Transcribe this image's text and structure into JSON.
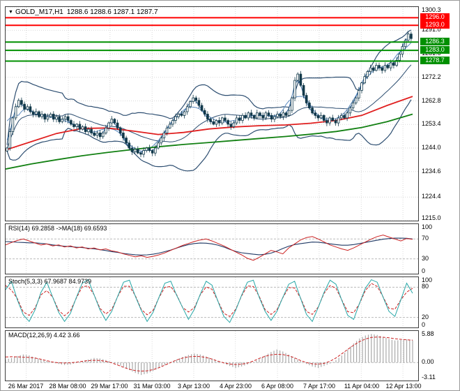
{
  "icons": {
    "symbol_dropdown": "▼"
  },
  "colors": {
    "background": "#ffffff",
    "grid": "#d9d9d9",
    "panel_border": "#3c3c3c",
    "candle": "#12394a",
    "candle_bull_fill": "#ffffff",
    "bollinger": "#2c4d70",
    "ma_fast_blue": "#3a6ea8",
    "ma_mid_blue": "#5b8ac0",
    "ma_red": "#e01f1f",
    "ma_green": "#128012",
    "level_red": "#ff0000",
    "level_green": "#009000",
    "rsi_line": "#cc2222",
    "rsi_ma": "#1f3864",
    "stoch_k": "#27a7a7",
    "stoch_d": "#cc2222",
    "macd_hist": "#a9a9a9",
    "macd_signal": "#cc2222",
    "badge_text": "#ffffff",
    "sublevel_dash": "#b9b9b9"
  },
  "time_axis": {
    "labels": [
      "26 Mar 2017",
      "28 Mar 08:00",
      "29 Mar 17:00",
      "31 Mar 03:00",
      "3 Apr 13:00",
      "4 Apr 23:00",
      "6 Apr 08:00",
      "7 Apr 17:00",
      "11 Apr 04:00",
      "12 Apr 13:00"
    ],
    "fractions": [
      0.05,
      0.152,
      0.253,
      0.355,
      0.456,
      0.557,
      0.659,
      0.76,
      0.862,
      0.963
    ]
  },
  "chart_data": [
    {
      "type": "candlestick",
      "symbol": "GOLD_M17,H1",
      "ohlc_text": "1288.6 1288.6 1287.1 1287.7",
      "ylim": [
        1215.0,
        1300.3
      ],
      "y_ticks": [
        "1300.3",
        "1291.0",
        "1281.6",
        "1272.2",
        "1262.8",
        "1253.4",
        "1244.0",
        "1234.6",
        "1224.4",
        "1215.0"
      ],
      "closes": [
        1244,
        1250.5,
        1256,
        1260.5,
        1263,
        1261.5,
        1259.5,
        1260.5,
        1258.5,
        1257.5,
        1258.5,
        1256.5,
        1257.5,
        1255.5,
        1256.5,
        1257.5,
        1255.5,
        1256.5,
        1254.5,
        1255.5,
        1256.5,
        1255,
        1253.5,
        1252.5,
        1253.5,
        1251.5,
        1252.5,
        1250.5,
        1251.5,
        1250,
        1249,
        1250,
        1248.5,
        1250,
        1252,
        1254,
        1255.5,
        1254,
        1252,
        1250,
        1248,
        1246,
        1244,
        1242.5,
        1243.5,
        1242,
        1241.5,
        1243,
        1244,
        1243,
        1242,
        1244,
        1246,
        1248,
        1250,
        1252,
        1253.5,
        1255,
        1256.5,
        1257.5,
        1257,
        1258.5,
        1260.5,
        1262.5,
        1264,
        1263,
        1261,
        1259,
        1257.5,
        1255.5,
        1254.5,
        1253.5,
        1255,
        1254,
        1256,
        1255,
        1253.5,
        1252.5,
        1254,
        1256,
        1255,
        1257,
        1256,
        1258,
        1257,
        1256,
        1258,
        1257,
        1256,
        1258,
        1257,
        1255.5,
        1256.5,
        1257.5,
        1256.5,
        1258,
        1257,
        1259,
        1264,
        1271,
        1273.5,
        1269,
        1265,
        1262,
        1260,
        1258,
        1257,
        1256,
        1257,
        1255,
        1254,
        1256,
        1255,
        1254,
        1256,
        1257,
        1256,
        1258,
        1260,
        1262,
        1264,
        1267,
        1270,
        1272.5,
        1274.5,
        1276,
        1275,
        1277,
        1276,
        1275,
        1277,
        1276,
        1278,
        1277,
        1279,
        1281.5,
        1284.5,
        1287,
        1289.5,
        1287.7
      ],
      "levels": [
        {
          "value": 1296.0,
          "label": "1296.0",
          "color": "red"
        },
        {
          "value": 1293.0,
          "label": "1293.0",
          "color": "red"
        },
        {
          "value": 1286.3,
          "label": "1286.3",
          "color": "green"
        },
        {
          "value": 1283.0,
          "label": "1283.0",
          "color": "green"
        },
        {
          "value": 1278.7,
          "label": "1278.7",
          "color": "green"
        }
      ],
      "ma_red_points": [
        1243.2,
        1246.5,
        1249.8,
        1251.8,
        1252.0,
        1250.8,
        1249.4,
        1250.2,
        1251.6,
        1252.4,
        1252.9,
        1253.2,
        1253.9,
        1255.0,
        1257.0,
        1261.0,
        1264.6
      ],
      "ma_green_points": [
        1235.6,
        1237.6,
        1239.3,
        1240.9,
        1242.2,
        1243.4,
        1244.5,
        1245.4,
        1246.2,
        1247.0,
        1247.8,
        1248.6,
        1249.5,
        1250.6,
        1252.2,
        1254.5,
        1257.5
      ]
    },
    {
      "type": "line",
      "label": "RSI(14) 69.2858 ->MA(18) 69.6593",
      "ylim": [
        0,
        100
      ],
      "y_ticks": [
        "100",
        "70",
        "30",
        "0"
      ],
      "level_lines": [
        70,
        30
      ],
      "values": [
        58,
        63,
        67,
        70,
        66,
        62,
        58,
        60,
        56,
        58,
        54,
        56,
        52,
        54,
        50,
        52,
        48,
        50,
        46,
        44,
        40,
        37,
        34,
        36,
        33,
        35,
        38,
        42,
        47,
        52,
        57,
        61,
        65,
        68,
        70,
        66,
        61,
        56,
        50,
        44,
        38,
        31,
        27,
        33,
        40,
        47,
        44,
        40,
        52,
        60,
        68,
        73,
        75,
        70,
        64,
        58,
        54,
        50,
        47,
        52,
        58,
        64,
        70,
        75,
        78,
        74,
        70,
        66,
        71,
        69.3
      ]
    },
    {
      "type": "line",
      "label": "Stoch(5,3,3) 67.9687 84.9739",
      "ylim": [
        0,
        100
      ],
      "y_ticks": [
        "100",
        "80",
        "20",
        "0"
      ],
      "level_lines": [
        80,
        20
      ],
      "values": [
        75,
        92,
        55,
        25,
        12,
        35,
        70,
        90,
        60,
        30,
        12,
        28,
        60,
        88,
        95,
        65,
        35,
        14,
        32,
        62,
        90,
        94,
        62,
        34,
        12,
        30,
        60,
        88,
        92,
        64,
        40,
        16,
        36,
        66,
        92,
        84,
        52,
        22,
        10,
        34,
        64,
        90,
        94,
        60,
        32,
        14,
        32,
        60,
        86,
        92,
        58,
        26,
        12,
        40,
        70,
        94,
        86,
        54,
        24,
        16,
        48,
        78,
        95,
        90,
        60,
        32,
        22,
        55,
        88,
        68
      ]
    },
    {
      "type": "bar",
      "label": "MACD(12,26,9) 4.42 3.66",
      "ylim": [
        -3.6,
        6.3
      ],
      "y_ticks": [
        "5.88",
        "0.00",
        "-3.11"
      ],
      "level_lines": [
        0
      ],
      "values": [
        0.6,
        0.9,
        1.3,
        1.6,
        1.4,
        1.0,
        0.6,
        0.3,
        0.0,
        -0.3,
        -0.5,
        -0.4,
        -0.1,
        0.3,
        0.6,
        0.9,
        0.8,
        0.5,
        0.1,
        -0.4,
        -0.9,
        -1.5,
        -2.1,
        -2.5,
        -2.2,
        -1.7,
        -1.1,
        -0.5,
        0.1,
        0.6,
        1.1,
        1.5,
        1.8,
        1.6,
        1.2,
        0.8,
        0.3,
        -0.2,
        -0.7,
        -1.1,
        -0.8,
        -0.4,
        0.1,
        0.7,
        1.4,
        2.1,
        2.6,
        2.2,
        1.6,
        0.9,
        0.3,
        -0.3,
        -0.8,
        -1.1,
        -0.7,
        -0.2,
        0.5,
        1.4,
        2.6,
        3.8,
        4.8,
        5.4,
        5.7,
        5.5,
        5.1,
        4.7,
        4.4,
        4.5,
        4.6,
        4.42
      ]
    }
  ]
}
